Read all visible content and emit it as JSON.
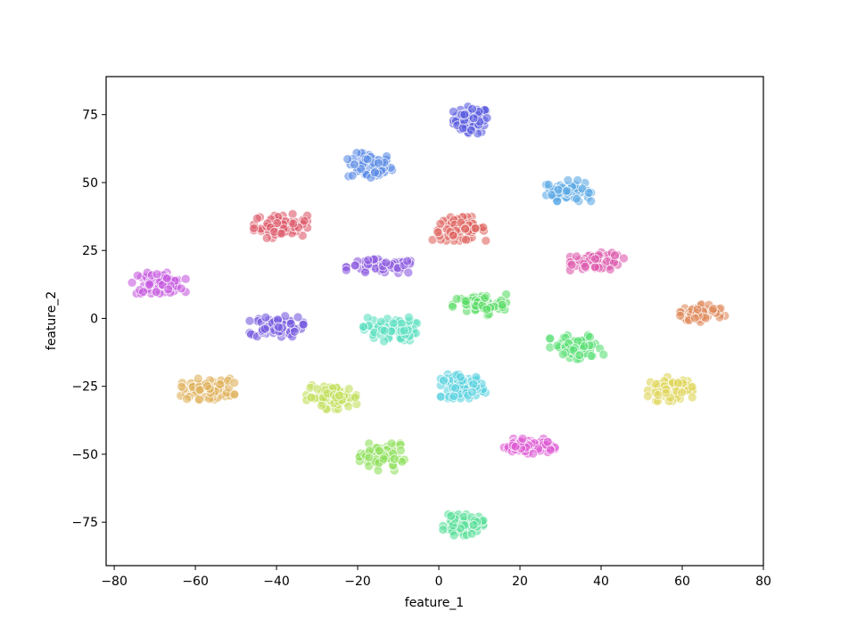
{
  "chart_data": {
    "type": "scatter",
    "title": "",
    "xlabel": "feature_1",
    "ylabel": "feature_2",
    "xlim": [
      -82,
      80
    ],
    "ylim": [
      -91,
      89
    ],
    "xticks": [
      -80,
      -60,
      -40,
      -20,
      0,
      20,
      40,
      60,
      80
    ],
    "yticks": [
      -75,
      -50,
      -25,
      0,
      25,
      50,
      75
    ],
    "xtick_labels": [
      "−80",
      "−60",
      "−40",
      "−20",
      "0",
      "20",
      "40",
      "60",
      "80"
    ],
    "ytick_labels": [
      "−75",
      "−50",
      "−25",
      "0",
      "25",
      "50",
      "75"
    ],
    "grid": false,
    "legend": "none",
    "marker_alpha": 0.6,
    "marker_edge_color": "#ffffff",
    "clusters": [
      {
        "color": "#5a5be0",
        "center": [
          8,
          73
        ],
        "spread": [
          4,
          4.5
        ]
      },
      {
        "color": "#5b8ce6",
        "center": [
          -17,
          56
        ],
        "spread": [
          5,
          4.5
        ]
      },
      {
        "color": "#5aa9e4",
        "center": [
          32,
          47
        ],
        "spread": [
          5,
          3.5
        ]
      },
      {
        "color": "#de5a6a",
        "center": [
          -39,
          34
        ],
        "spread": [
          6,
          4
        ]
      },
      {
        "color": "#e06660",
        "center": [
          5,
          33
        ],
        "spread": [
          6,
          4
        ]
      },
      {
        "color": "#8c5ae0",
        "center": [
          -14,
          19
        ],
        "spread": [
          8,
          2.5
        ]
      },
      {
        "color": "#de5aad",
        "center": [
          39,
          21
        ],
        "spread": [
          6,
          3
        ]
      },
      {
        "color": "#c75ae0",
        "center": [
          -69,
          13
        ],
        "spread": [
          6,
          3.5
        ]
      },
      {
        "color": "#5adc66",
        "center": [
          10,
          5
        ],
        "spread": [
          6,
          3.5
        ]
      },
      {
        "color": "#e0885a",
        "center": [
          65,
          2
        ],
        "spread": [
          5,
          3
        ]
      },
      {
        "color": "#765ae0",
        "center": [
          -40,
          -3
        ],
        "spread": [
          6,
          3.5
        ]
      },
      {
        "color": "#5ae0c0",
        "center": [
          -12,
          -4
        ],
        "spread": [
          6,
          4
        ]
      },
      {
        "color": "#5ae075",
        "center": [
          34,
          -11
        ],
        "spread": [
          6,
          4.5
        ]
      },
      {
        "color": "#e0b05a",
        "center": [
          -57,
          -26
        ],
        "spread": [
          6,
          3.5
        ]
      },
      {
        "color": "#c2e05a",
        "center": [
          -26,
          -29
        ],
        "spread": [
          6,
          4
        ]
      },
      {
        "color": "#5ad2e0",
        "center": [
          6,
          -25
        ],
        "spread": [
          5,
          4
        ]
      },
      {
        "color": "#e0d65a",
        "center": [
          57,
          -26
        ],
        "spread": [
          5,
          4
        ]
      },
      {
        "color": "#dd5ad4",
        "center": [
          22,
          -47
        ],
        "spread": [
          6,
          2.5
        ]
      },
      {
        "color": "#8ee05a",
        "center": [
          -14,
          -51
        ],
        "spread": [
          5,
          4.5
        ]
      },
      {
        "color": "#5ae09a",
        "center": [
          6,
          -76
        ],
        "spread": [
          4.5,
          3.5
        ]
      }
    ]
  }
}
